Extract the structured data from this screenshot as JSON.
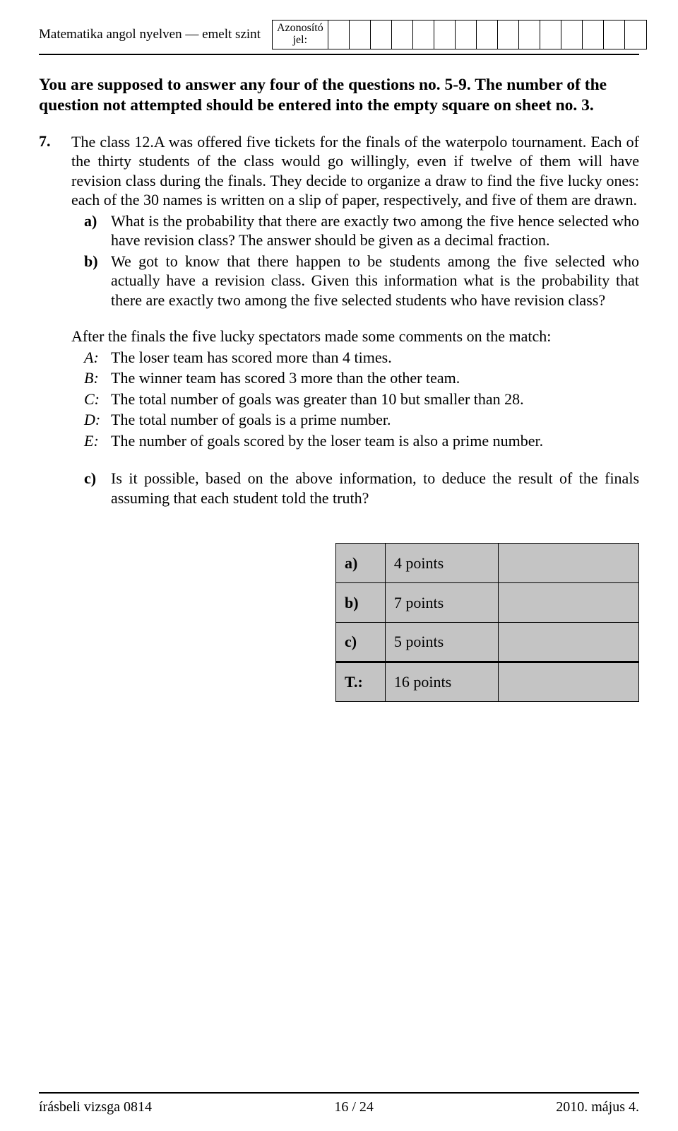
{
  "header": {
    "left": "Matematika angol nyelven — emelt szint",
    "id_label_line1": "Azonosító",
    "id_label_line2": "jel:",
    "id_cell_count": 15
  },
  "instruction": "You are supposed to answer any four of the questions no. 5-9. The number of the question not attempted should be entered into the empty square on sheet no. 3.",
  "question": {
    "number": "7.",
    "intro": "The class 12.A was offered five tickets for the finals of the waterpolo tournament. Each of the thirty students of the class would go willingly, even if twelve of them will have revision class during the finals. They decide to organize a draw to find the five lucky ones: each of the 30 names is written on a slip of paper, respectively, and five of them are drawn.",
    "a_label": "a)",
    "a_text": "What is the probability that there are exactly two among the five hence selected who have revision class? The answer should be given as a decimal fraction.",
    "b_label": "b)",
    "b_text": "We got to know that there happen to be students among the five selected who actually have a revision class. Given this information what is the probability that there are exactly two among the five selected students who have revision class?",
    "after_intro": "After the finals the five lucky spectators made some comments on the match:",
    "comments": [
      {
        "label": "A:",
        "text": "The loser team has scored more than 4 times."
      },
      {
        "label": "B:",
        "text": "The winner team has scored 3 more than the other team."
      },
      {
        "label": "C:",
        "text": "The total number of goals was greater than 10 but smaller than 28."
      },
      {
        "label": "D:",
        "text": "The total number of goals is a prime number."
      },
      {
        "label": "E:",
        "text": "The number of goals scored by the loser team is also a prime number."
      }
    ],
    "c_label": "c)",
    "c_text": "Is it possible, based on the above information, to deduce the result of the finals assuming that each student told the truth?"
  },
  "points_table": {
    "background": "#c4c4c4",
    "rows": [
      {
        "label": "a)",
        "points": "4 points"
      },
      {
        "label": "b)",
        "points": "7 points"
      },
      {
        "label": "c)",
        "points": "5 points"
      }
    ],
    "total": {
      "label": "T.:",
      "points": "16 points"
    }
  },
  "footer": {
    "left": "írásbeli vizsga 0814",
    "center": "16 / 24",
    "right": "2010. május 4."
  }
}
